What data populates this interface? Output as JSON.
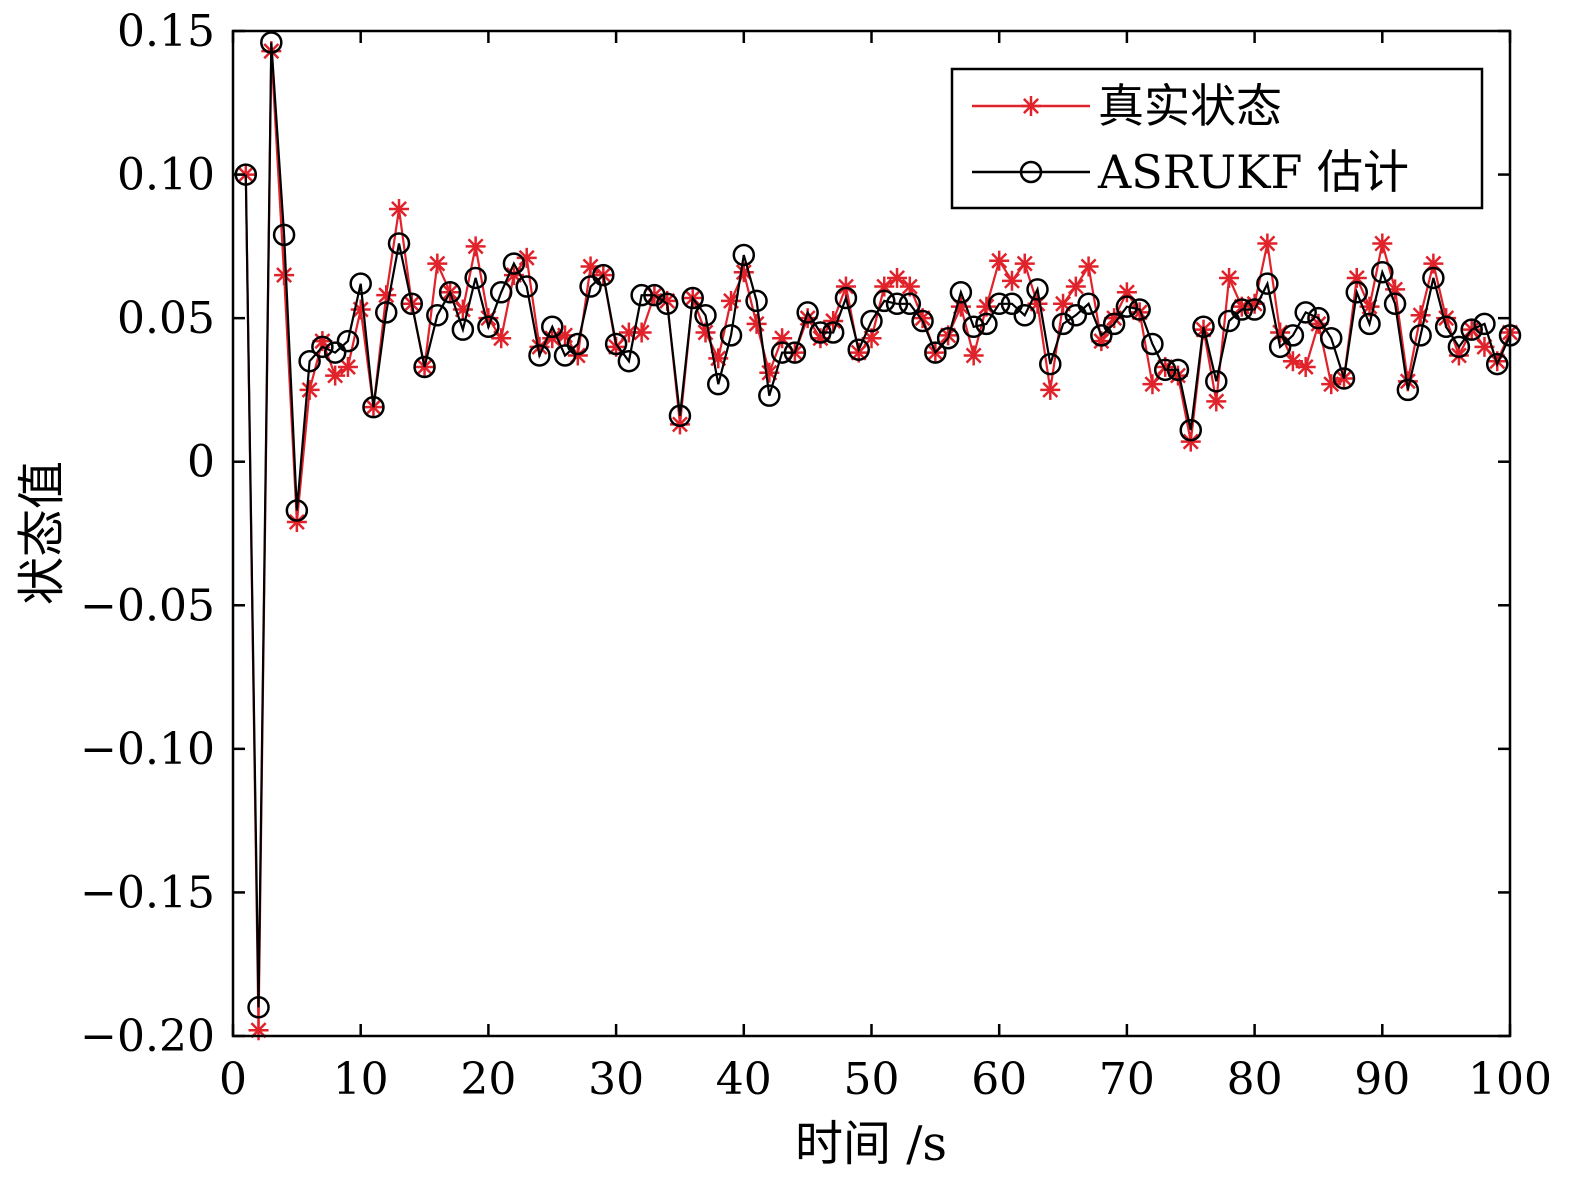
{
  "chart_data": {
    "type": "line",
    "xlabel": "时间 /s",
    "ylabel": "状态值",
    "xlim": [
      0,
      100
    ],
    "ylim": [
      -0.2,
      0.15
    ],
    "xticks": [
      0,
      10,
      20,
      30,
      40,
      50,
      60,
      70,
      80,
      90,
      100
    ],
    "xtick_labels": [
      "0",
      "10",
      "20",
      "30",
      "40",
      "50",
      "60",
      "70",
      "80",
      "90",
      "100"
    ],
    "yticks": [
      0.15,
      0.1,
      0.05,
      0,
      -0.05,
      -0.1,
      -0.15,
      -0.2
    ],
    "ytick_labels": [
      "0.15",
      "0.10",
      "0.05",
      "0",
      "−0.05",
      "−0.10",
      "−0.15",
      "−0.20"
    ],
    "grid": false,
    "legend_position": "top-right",
    "x": [
      1,
      2,
      3,
      4,
      5,
      6,
      7,
      8,
      9,
      10,
      11,
      12,
      13,
      14,
      15,
      16,
      17,
      18,
      19,
      20,
      21,
      22,
      23,
      24,
      25,
      26,
      27,
      28,
      29,
      30,
      31,
      32,
      33,
      34,
      35,
      36,
      37,
      38,
      39,
      40,
      41,
      42,
      43,
      44,
      45,
      46,
      47,
      48,
      49,
      50,
      51,
      52,
      53,
      54,
      55,
      56,
      57,
      58,
      59,
      60,
      61,
      62,
      63,
      64,
      65,
      66,
      67,
      68,
      69,
      70,
      71,
      72,
      73,
      74,
      75,
      76,
      77,
      78,
      79,
      80,
      81,
      82,
      83,
      84,
      85,
      86,
      87,
      88,
      89,
      90,
      91,
      92,
      93,
      94,
      95,
      96,
      97,
      98,
      99,
      100
    ],
    "series": [
      {
        "name": "真实状态",
        "color": "#e0222b",
        "marker": "asterisk",
        "values": [
          0.1,
          -0.198,
          0.143,
          0.065,
          -0.021,
          0.025,
          0.042,
          0.03,
          0.033,
          0.053,
          0.019,
          0.058,
          0.088,
          0.055,
          0.033,
          0.069,
          0.059,
          0.053,
          0.075,
          0.05,
          0.043,
          0.065,
          0.071,
          0.04,
          0.043,
          0.044,
          0.037,
          0.068,
          0.065,
          0.04,
          0.045,
          0.045,
          0.058,
          0.056,
          0.013,
          0.057,
          0.045,
          0.036,
          0.056,
          0.066,
          0.048,
          0.031,
          0.043,
          0.038,
          0.05,
          0.043,
          0.049,
          0.061,
          0.038,
          0.043,
          0.061,
          0.064,
          0.061,
          0.05,
          0.038,
          0.044,
          0.054,
          0.037,
          0.054,
          0.07,
          0.063,
          0.069,
          0.055,
          0.025,
          0.055,
          0.061,
          0.068,
          0.042,
          0.05,
          0.059,
          0.052,
          0.027,
          0.033,
          0.03,
          0.007,
          0.046,
          0.021,
          0.064,
          0.054,
          0.055,
          0.076,
          0.045,
          0.035,
          0.033,
          0.048,
          0.027,
          0.029,
          0.064,
          0.054,
          0.076,
          0.06,
          0.028,
          0.051,
          0.069,
          0.05,
          0.037,
          0.046,
          0.04,
          0.035,
          0.045
        ]
      },
      {
        "name": "ASRUKF 估计",
        "color": "#000000",
        "marker": "circle",
        "values": [
          0.1,
          -0.19,
          0.146,
          0.079,
          -0.017,
          0.035,
          0.04,
          0.038,
          0.042,
          0.062,
          0.019,
          0.052,
          0.076,
          0.055,
          0.033,
          0.051,
          0.059,
          0.046,
          0.064,
          0.047,
          0.059,
          0.069,
          0.061,
          0.037,
          0.047,
          0.037,
          0.041,
          0.061,
          0.065,
          0.041,
          0.035,
          0.058,
          0.058,
          0.055,
          0.016,
          0.057,
          0.051,
          0.027,
          0.044,
          0.072,
          0.056,
          0.023,
          0.038,
          0.038,
          0.052,
          0.045,
          0.045,
          0.057,
          0.039,
          0.049,
          0.056,
          0.055,
          0.055,
          0.049,
          0.038,
          0.043,
          0.059,
          0.047,
          0.048,
          0.055,
          0.055,
          0.051,
          0.06,
          0.034,
          0.048,
          0.051,
          0.055,
          0.044,
          0.048,
          0.054,
          0.053,
          0.041,
          0.032,
          0.032,
          0.011,
          0.047,
          0.028,
          0.049,
          0.053,
          0.053,
          0.062,
          0.04,
          0.044,
          0.052,
          0.05,
          0.043,
          0.029,
          0.059,
          0.048,
          0.066,
          0.055,
          0.025,
          0.044,
          0.064,
          0.047,
          0.04,
          0.046,
          0.048,
          0.034,
          0.044
        ]
      }
    ]
  }
}
